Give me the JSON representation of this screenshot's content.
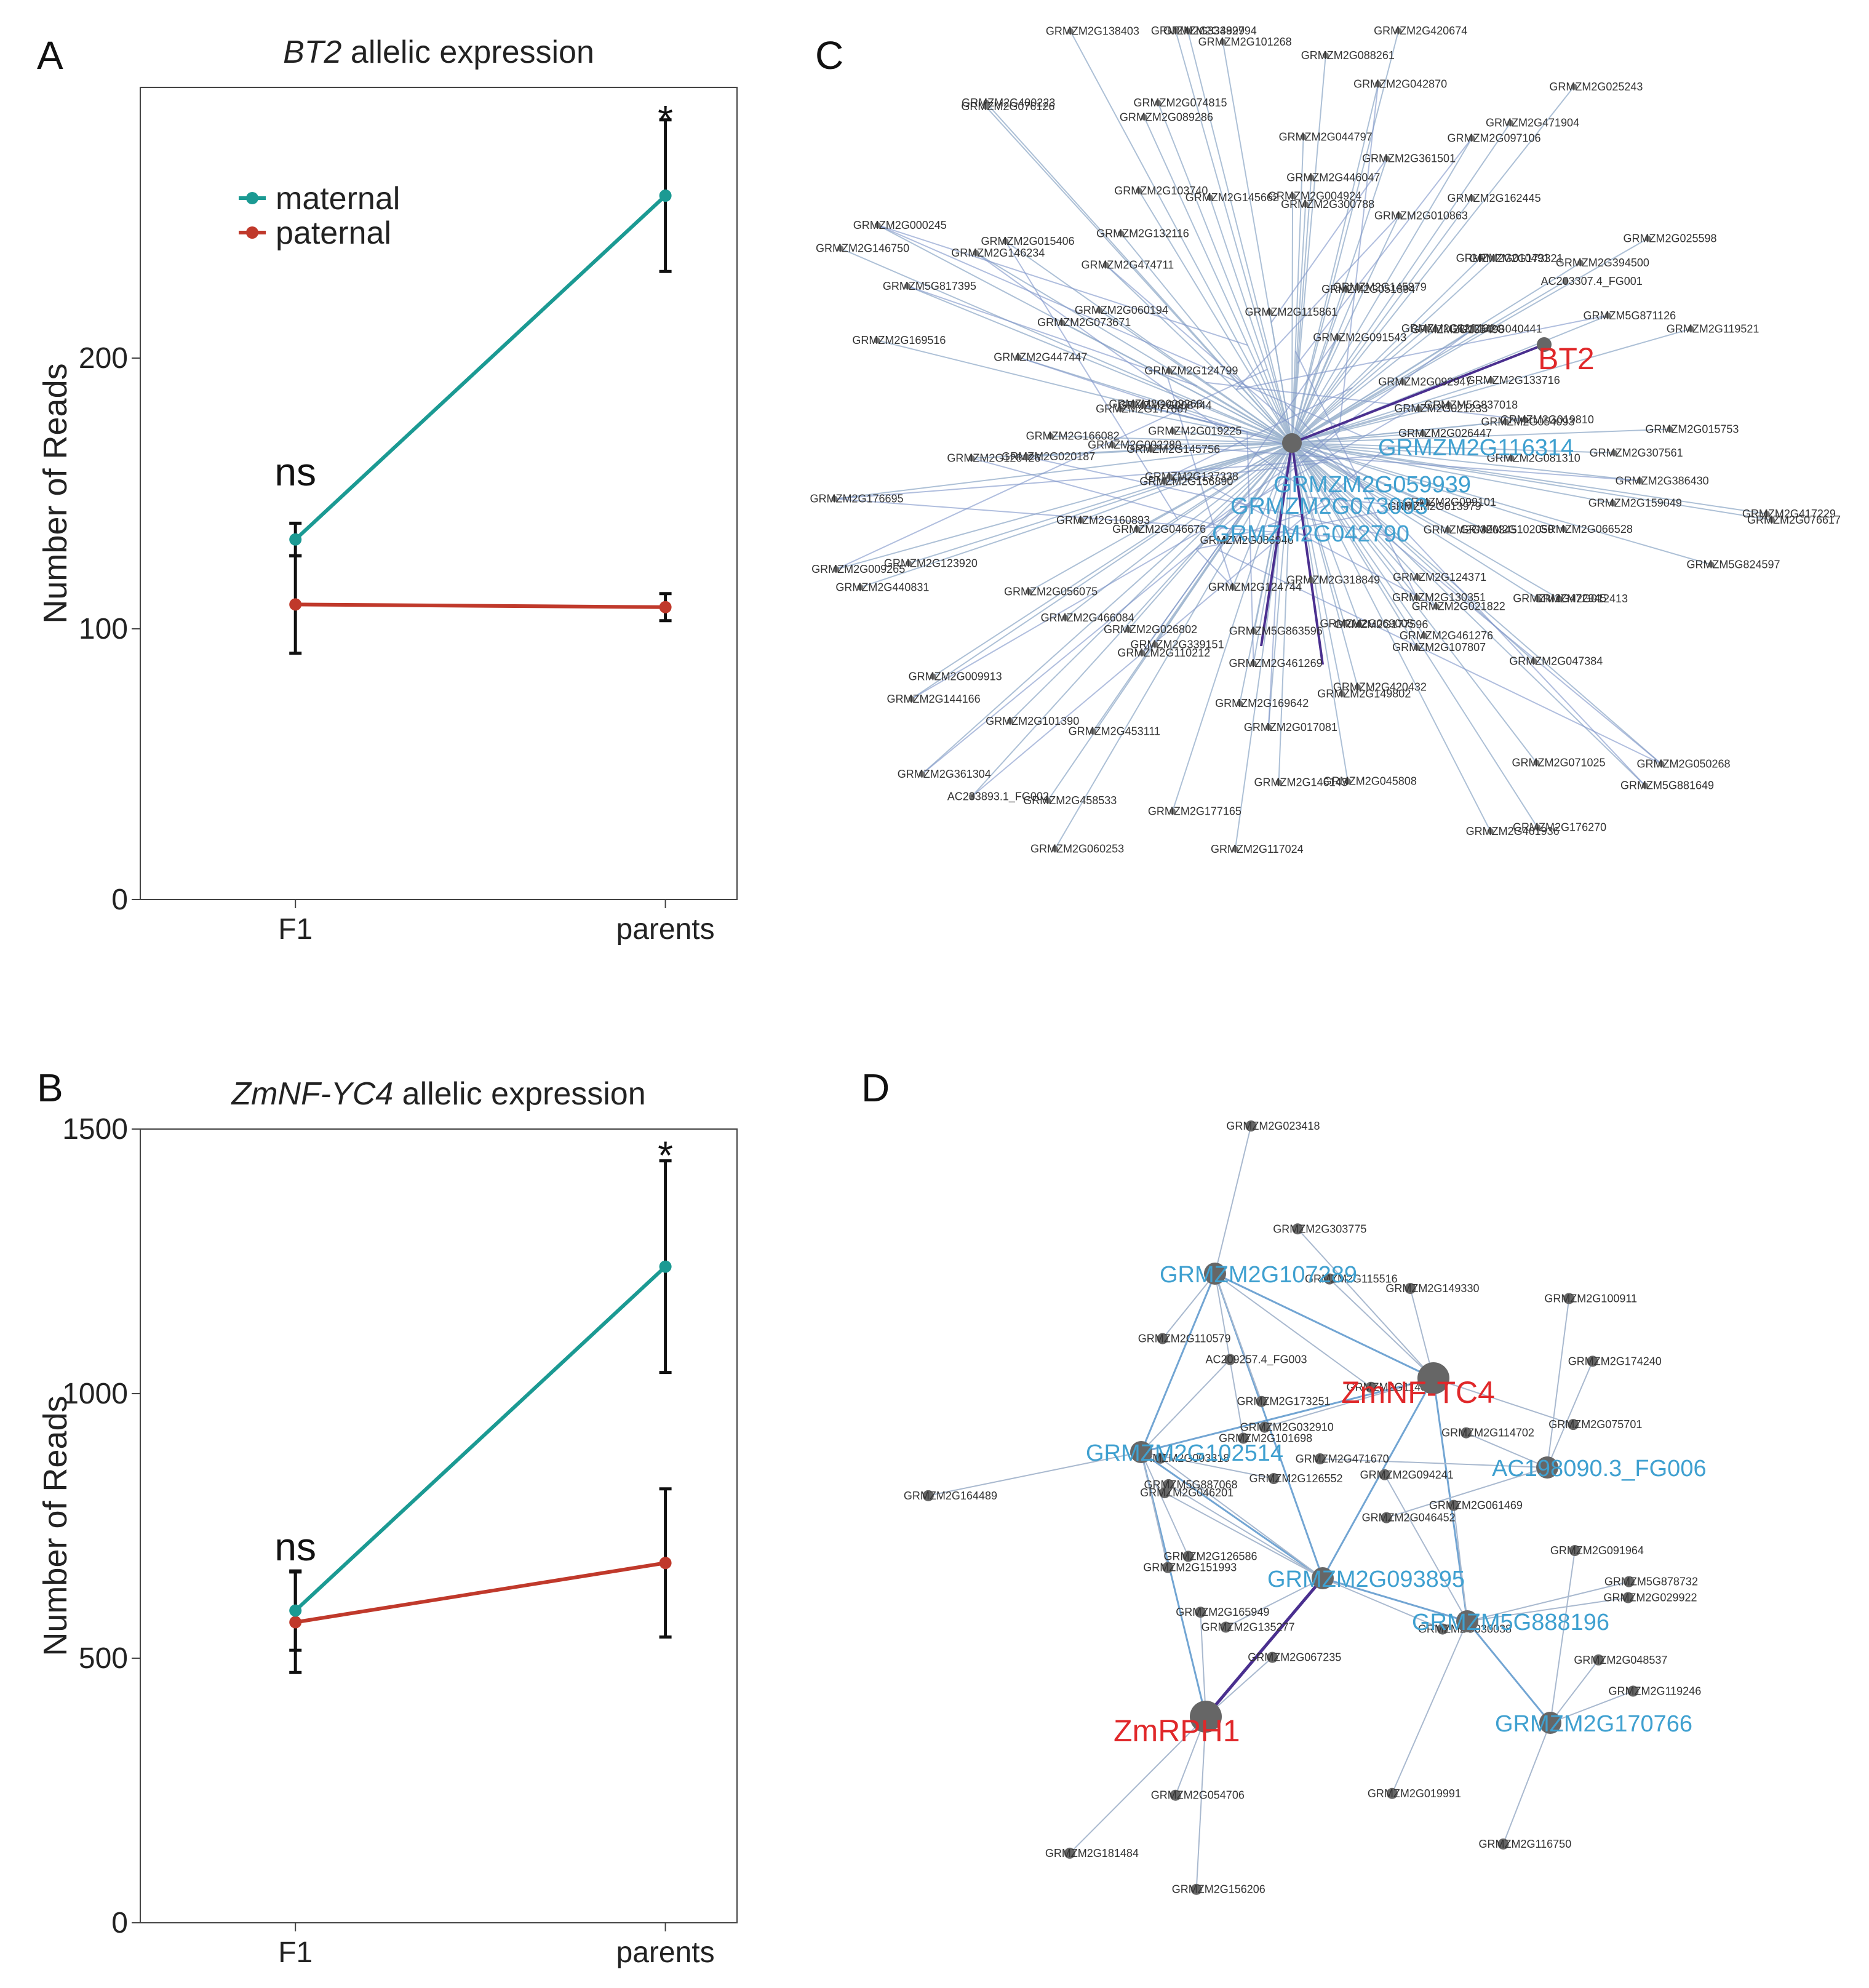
{
  "panels": {
    "A": "A",
    "B": "B",
    "C": "C",
    "D": "D"
  },
  "colors": {
    "maternal": "#1b9a93",
    "paternal": "#c0392b",
    "edge": "#9fb6d0",
    "edge_strong": "#4a2f8f",
    "node": "#555555",
    "hub_label": "#e0282a",
    "mid_label": "#3fa0d0"
  },
  "chart_data": [
    {
      "type": "line",
      "title_italic": "BT2",
      "title_rest": "allelic expression",
      "ylabel": "Number of Reads",
      "categories": [
        "F1",
        "parents"
      ],
      "ylim": [
        0,
        300
      ],
      "yticks": [
        "0",
        "100",
        "200"
      ],
      "yticks_values": [
        0,
        100,
        200
      ],
      "series": [
        {
          "name": "maternal",
          "values": [
            133,
            260
          ],
          "err": [
            6,
            28
          ]
        },
        {
          "name": "paternal",
          "values": [
            109,
            108
          ],
          "err": [
            18,
            5
          ]
        }
      ],
      "annotations": [
        {
          "text": "ns",
          "category": 0,
          "y": 153
        },
        {
          "text": "*",
          "category": 1,
          "y": 290
        }
      ],
      "legend": "top-left"
    },
    {
      "type": "line",
      "title_italic": "ZmNF-YC4",
      "title_rest": "allelic expression",
      "ylabel": "Number of Reads",
      "categories": [
        "F1",
        "parents"
      ],
      "ylim": [
        0,
        1500
      ],
      "yticks": [
        "0",
        "500",
        "1000",
        "1500"
      ],
      "yticks_values": [
        0,
        500,
        1000,
        1500
      ],
      "series": [
        {
          "name": "maternal",
          "values": [
            590,
            1240
          ],
          "err": [
            75,
            200
          ]
        },
        {
          "name": "paternal",
          "values": [
            568,
            680
          ],
          "err": [
            95,
            140
          ]
        }
      ],
      "annotations": [
        {
          "text": "ns",
          "category": 0,
          "y": 685
        },
        {
          "text": "*",
          "category": 1,
          "y": 1460
        }
      ]
    }
  ],
  "networkC": {
    "hub": "BT2",
    "mid_labels": [
      "GRMZM2G116314",
      "GRMZM2G059939",
      "GRMZM2G073003",
      "GRMZM2G042790"
    ],
    "nodes": [
      "GRMZM2G386430",
      "GRMZM2G081310",
      "GRMZM2G159049",
      "GRMZM2G417229",
      "GRMZM2G066528",
      "GRMZM5G824597",
      "GRMZM2G099101",
      "GRMZM2G102050",
      "GRMZM2G390345",
      "GRMZM2G012413",
      "GRMZM2G013979",
      "GRMZM2G050268",
      "GRMZM2G472945",
      "GRMZM2G124371",
      "GRMZM2G047384",
      "GRMZM2G021822",
      "GRMZM5G881649",
      "GRMZM2G130351",
      "GRMZM2G461276",
      "GRMZM2G071025",
      "GRMZM2G107807",
      "GRMZM2G176270",
      "GRMZM2G461936",
      "GRMZM2G177596",
      "GRMZM2G420432",
      "GRMZM2G045808",
      "GRMZM2G069005",
      "GRMZM2G318849",
      "GRMZM2G149802",
      "GRMZM2G146143",
      "GRMZM2G461269",
      "GRMZM2G017081",
      "GRMZM2G117024",
      "GRMZM2G169642",
      "GRMZM5G863596",
      "GRMZM2G124744",
      "GRMZM2G177165",
      "GRMZM2G060253",
      "GRMZM2G458533",
      "GRMZM2G453111",
      "GRMZM2G086946",
      "GRMZM2G339151",
      "GRMZM2G110212",
      "GRMZM2G101390",
      "AC233893.1_FG002",
      "GRMZM2G026802",
      "GRMZM2G466084",
      "GRMZM2G361304",
      "GRMZM2G144166",
      "GRMZM2G056075",
      "GRMZM2G009913",
      "GRMZM2G160893",
      "GRMZM2G046676",
      "GRMZM2G123920",
      "GRMZM2G009265",
      "GRMZM2G440831",
      "GRMZM2G156890",
      "GRMZM2G137338",
      "GRMZM2G176695",
      "GRMZM2G002280",
      "GRMZM2G145756",
      "GRMZM2G126426",
      "GRMZM2G020187",
      "GRMZM2G166082",
      "GRMZM2G177667",
      "GRMZM2G019225",
      "GRMZM2G008444",
      "GRMZM2G009263",
      "GRMZM2G447447",
      "GRMZM2G169516",
      "GRMZM5G817395",
      "GRMZM2G146750",
      "GRMZM2G146234",
      "GRMZM2G073671",
      "GRMZM2G000245",
      "GRMZM2G124799",
      "GRMZM2G060194",
      "GRMZM2G015406",
      "GRMZM2G474711",
      "GRMZM2G400223",
      "GRMZM2G132116",
      "GRMZM2G076126",
      "GRMZM2G103740",
      "GRMZM2G089286",
      "GRMZM2G138403",
      "GRMZM2G145662",
      "GRMZM2G074815",
      "GRMZM2G392794",
      "GRMZM2G334899",
      "GRMZM2G101268",
      "GRMZM2G115861",
      "GRMZM2G044797",
      "GRMZM2G004924",
      "GRMZM2G088261",
      "GRMZM2G446047",
      "GRMZM2G042870",
      "GRMZM2G300788",
      "GRMZM2G420674",
      "GRMZM2G051894",
      "GRMZM2G145879",
      "GRMZM2G361501",
      "GRMZM2G091543",
      "GRMZM2G162445",
      "GRMZM2G010863",
      "GRMZM2G097106",
      "GRMZM2G471904",
      "GRMZM2G025243",
      "GRMZM2G010491",
      "GRMZM2G135498",
      "GRMZM2G173321",
      "GRMZM2G394500",
      "GRMZM2G129431",
      "GRMZM2G040441",
      "AC203307.4_FG001",
      "GRMZM2G092947",
      "GRMZM2G025598",
      "GRMZM5G871126",
      "GRMZM5G837018",
      "GRMZM2G133716",
      "GRMZM2G021233",
      "GRMZM2G119521",
      "GRMZM2G026447",
      "GRMZM2G019810",
      "GRMZM2G054093",
      "GRMZM2G307561",
      "GRMZM2G015753",
      "GRMZM2G076617"
    ]
  },
  "networkD": {
    "hubs": [
      "ZmNF-TC4",
      "ZmRPH1"
    ],
    "mid_labels": [
      "GRMZM2G107289",
      "GRMZM2G102514",
      "AC198090.3_FG006",
      "GRMZM2G093895",
      "GRMZM5G888196",
      "GRMZM2G170766"
    ],
    "nodes": [
      "GRMZM2G303775",
      "GRMZM2G054706",
      "GRMZM2G101698",
      "GRMZM2G126586",
      "GRMZM2G174240",
      "GRMZM2G003318",
      "GRMZM5G878732",
      "GRMZM2G116750",
      "GRMZM2G032910",
      "GRMZM2G156206",
      "GRMZM2G114816",
      "GRMZM2G126552",
      "GRMZM2G046452",
      "GRMZM2G046201",
      "GRMZM2G061469",
      "GRMZM2G048537",
      "GRMZM2G075701",
      "GRMZM2G067235",
      "GRMZM2G023418",
      "AC209257.4_FG003",
      "GRMZM2G100911",
      "GRMZM5G887068",
      "GRMZM2G019991",
      "GRMZM2G091964",
      "GRMZM2G115516",
      "GRMZM2G165949",
      "GRMZM2G173251",
      "GRMZM2G151993",
      "GRMZM2G471670",
      "GRMZM2G135277",
      "GRMZM2G094241",
      "GRMZM2G119246",
      "GRMZM2G149330",
      "GRMZM2G181484",
      "GRMZM2G110579",
      "GRMZM2G164489",
      "GRMZM2G114702",
      "GRMZM2G030038",
      "GRMZM2G029922"
    ]
  }
}
